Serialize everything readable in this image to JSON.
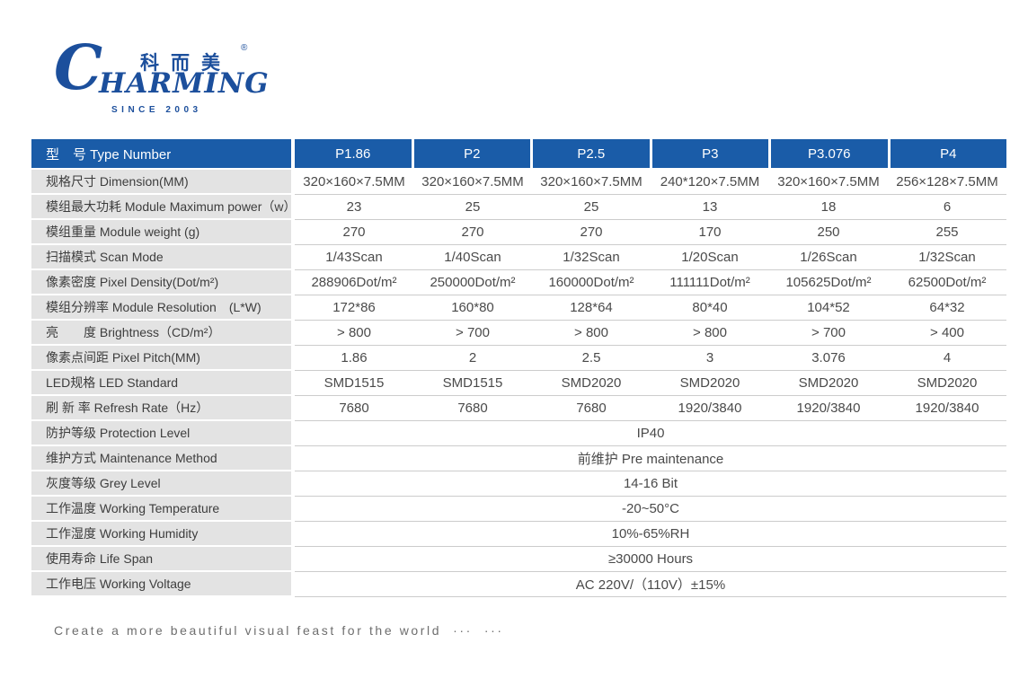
{
  "logo": {
    "brand_c": "C",
    "brand_rest": "HARMING",
    "chinese": "科而美",
    "registered": "®",
    "since": "SINCE 2003"
  },
  "colors": {
    "header_blue": "#1A5CA8",
    "logo_blue": "#1C4F9C",
    "label_gray": "#E3E3E3",
    "row_line": "#CCCCCC",
    "footer_text": "#6E6E6E"
  },
  "table": {
    "header": {
      "label": "型　号 Type Number",
      "columns": [
        "P1.86",
        "P2",
        "P2.5",
        "P3",
        "P3.076",
        "P4"
      ]
    },
    "rows": [
      {
        "label": "规格尺寸 Dimension(MM)",
        "values": [
          "320×160×7.5MM",
          "320×160×7.5MM",
          "320×160×7.5MM",
          "240*120×7.5MM",
          "320×160×7.5MM",
          "256×128×7.5MM"
        ]
      },
      {
        "label": "模组最大功耗 Module Maximum power（w）",
        "values": [
          "23",
          "25",
          "25",
          "13",
          "18",
          "6"
        ]
      },
      {
        "label": "模组重量 Module weight (g)",
        "values": [
          "270",
          "270",
          "270",
          "170",
          "250",
          "255"
        ]
      },
      {
        "label": "扫描模式 Scan Mode",
        "values": [
          "1/43Scan",
          "1/40Scan",
          "1/32Scan",
          "1/20Scan",
          "1/26Scan",
          "1/32Scan"
        ]
      },
      {
        "label": "像素密度 Pixel Density(Dot/m²)",
        "values": [
          "288906Dot/m²",
          "250000Dot/m²",
          "160000Dot/m²",
          "111111Dot/m²",
          "105625Dot/m²",
          "62500Dot/m²"
        ]
      },
      {
        "label": "模组分辨率 Module Resolution　(L*W)",
        "values": [
          "172*86",
          "160*80",
          "128*64",
          "80*40",
          "104*52",
          "64*32"
        ]
      },
      {
        "label": "亮　　度 Brightness（CD/m²）",
        "values": [
          "> 800",
          "> 700",
          "> 800",
          "> 800",
          "> 700",
          "> 400"
        ]
      },
      {
        "label": "像素点间距 Pixel Pitch(MM)",
        "values": [
          "1.86",
          "2",
          "2.5",
          "3",
          "3.076",
          "4"
        ]
      },
      {
        "label": "LED规格 LED Standard",
        "values": [
          "SMD1515",
          "SMD1515",
          "SMD2020",
          "SMD2020",
          "SMD2020",
          "SMD2020"
        ]
      },
      {
        "label": "刷 新 率 Refresh Rate（Hz）",
        "values": [
          "7680",
          "7680",
          "7680",
          "1920/3840",
          "1920/3840",
          "1920/3840"
        ]
      },
      {
        "label": "防护等级 Protection Level",
        "merged": "IP40"
      },
      {
        "label": "维护方式 Maintenance Method",
        "merged": "前维护 Pre maintenance"
      },
      {
        "label": "灰度等级 Grey Level",
        "merged": "14-16 Bit"
      },
      {
        "label": "工作温度 Working Temperature",
        "merged": "-20~50°C"
      },
      {
        "label": "工作湿度 Working Humidity",
        "merged": "10%-65%RH"
      },
      {
        "label": "使用寿命 Life Span",
        "merged": "≥30000 Hours"
      },
      {
        "label": "工作电压 Working Voltage",
        "merged": "AC 220V/（110V）±15%"
      }
    ]
  },
  "footer": {
    "tagline": "Create a more beautiful visual feast for the world  ···  ···"
  }
}
